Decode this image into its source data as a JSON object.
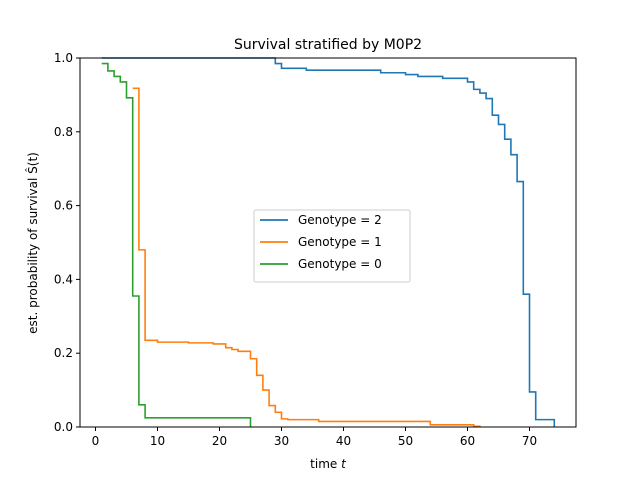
{
  "chart_data": {
    "type": "line",
    "title": "Survival stratified by M0P2",
    "xlabel_prefix": "time ",
    "xlabel_var": "t",
    "ylabel": "est. probability of survival Ŝ(t)",
    "xlim": [
      -2.5,
      77.5
    ],
    "ylim": [
      0,
      1
    ],
    "xticks": [
      0,
      10,
      20,
      30,
      40,
      50,
      60,
      70
    ],
    "yticks": [
      0.0,
      0.2,
      0.4,
      0.6,
      0.8,
      1.0
    ],
    "ytick_labels": [
      "0.0",
      "0.2",
      "0.4",
      "0.6",
      "0.8",
      "1.0"
    ],
    "legend_location": "center",
    "series": [
      {
        "name": "Genotype = 2",
        "color": "#1f77b4",
        "points": [
          [
            1,
            1.0
          ],
          [
            29,
            1.0
          ],
          [
            29,
            0.985
          ],
          [
            30,
            0.985
          ],
          [
            30,
            0.972
          ],
          [
            34,
            0.972
          ],
          [
            34,
            0.967
          ],
          [
            46,
            0.967
          ],
          [
            46,
            0.96
          ],
          [
            50,
            0.96
          ],
          [
            50,
            0.955
          ],
          [
            52,
            0.955
          ],
          [
            52,
            0.95
          ],
          [
            56,
            0.95
          ],
          [
            56,
            0.945
          ],
          [
            60,
            0.945
          ],
          [
            60,
            0.935
          ],
          [
            61,
            0.935
          ],
          [
            61,
            0.915
          ],
          [
            62,
            0.915
          ],
          [
            62,
            0.905
          ],
          [
            63,
            0.905
          ],
          [
            63,
            0.89
          ],
          [
            64,
            0.89
          ],
          [
            64,
            0.845
          ],
          [
            65,
            0.845
          ],
          [
            65,
            0.82
          ],
          [
            66,
            0.82
          ],
          [
            66,
            0.78
          ],
          [
            67,
            0.78
          ],
          [
            67,
            0.738
          ],
          [
            68,
            0.738
          ],
          [
            68,
            0.665
          ],
          [
            69,
            0.665
          ],
          [
            69,
            0.36
          ],
          [
            70,
            0.36
          ],
          [
            70,
            0.095
          ],
          [
            71,
            0.095
          ],
          [
            71,
            0.02
          ],
          [
            74,
            0.02
          ],
          [
            74,
            0.0
          ]
        ]
      },
      {
        "name": "Genotype = 1",
        "color": "#ff7f0e",
        "points": [
          [
            6,
            0.918
          ],
          [
            7,
            0.918
          ],
          [
            7,
            0.48
          ],
          [
            8,
            0.48
          ],
          [
            8,
            0.235
          ],
          [
            10,
            0.235
          ],
          [
            10,
            0.23
          ],
          [
            15,
            0.23
          ],
          [
            15,
            0.228
          ],
          [
            19,
            0.228
          ],
          [
            19,
            0.225
          ],
          [
            21,
            0.225
          ],
          [
            21,
            0.215
          ],
          [
            22,
            0.215
          ],
          [
            22,
            0.21
          ],
          [
            23,
            0.21
          ],
          [
            23,
            0.205
          ],
          [
            25,
            0.205
          ],
          [
            25,
            0.185
          ],
          [
            26,
            0.185
          ],
          [
            26,
            0.14
          ],
          [
            27,
            0.14
          ],
          [
            27,
            0.1
          ],
          [
            28,
            0.1
          ],
          [
            28,
            0.058
          ],
          [
            29,
            0.058
          ],
          [
            29,
            0.04
          ],
          [
            30,
            0.04
          ],
          [
            30,
            0.022
          ],
          [
            31,
            0.022
          ],
          [
            31,
            0.02
          ],
          [
            36,
            0.02
          ],
          [
            36,
            0.015
          ],
          [
            54,
            0.015
          ],
          [
            54,
            0.006
          ],
          [
            61,
            0.006
          ],
          [
            61,
            0.002
          ],
          [
            62,
            0.002
          ],
          [
            62,
            0.0
          ]
        ]
      },
      {
        "name": "Genotype = 0",
        "color": "#2ca02c",
        "points": [
          [
            1,
            0.985
          ],
          [
            2,
            0.985
          ],
          [
            2,
            0.965
          ],
          [
            3,
            0.965
          ],
          [
            3,
            0.95
          ],
          [
            4,
            0.95
          ],
          [
            4,
            0.935
          ],
          [
            5,
            0.935
          ],
          [
            5,
            0.892
          ],
          [
            6,
            0.892
          ],
          [
            6,
            0.355
          ],
          [
            7,
            0.355
          ],
          [
            7,
            0.06
          ],
          [
            8,
            0.06
          ],
          [
            8,
            0.025
          ],
          [
            25,
            0.025
          ],
          [
            25,
            0.0
          ]
        ]
      }
    ]
  }
}
